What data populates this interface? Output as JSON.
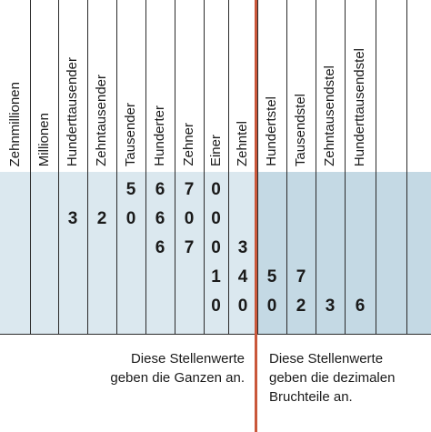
{
  "columns": [
    {
      "label": "Zehnmillionen"
    },
    {
      "label": "Millionen"
    },
    {
      "label": "Hunderttausender"
    },
    {
      "label": "Zehntausender"
    },
    {
      "label": "Tausender"
    },
    {
      "label": "Hunderter"
    },
    {
      "label": "Zehner"
    },
    {
      "label": "Einer"
    },
    {
      "label": "Zehntel"
    },
    {
      "label": "Hundertstel"
    },
    {
      "label": "Tausendstel"
    },
    {
      "label": "Zehntausendstel"
    },
    {
      "label": "Hunderttausendstel"
    }
  ],
  "rows": [
    [
      "",
      "",
      "",
      "",
      "5",
      "6",
      "7",
      "0",
      "",
      "",
      "",
      "",
      ""
    ],
    [
      "",
      "",
      "3",
      "2",
      "0",
      "6",
      "0",
      "0",
      "",
      "",
      "",
      "",
      ""
    ],
    [
      "",
      "",
      "",
      "",
      "",
      "6",
      "7",
      "0",
      "3",
      "",
      "",
      "",
      ""
    ],
    [
      "",
      "",
      "",
      "",
      "",
      "",
      "",
      "1",
      "4",
      "5",
      "7",
      "",
      ""
    ],
    [
      "",
      "",
      "",
      "",
      "",
      "",
      "",
      "0",
      "0",
      "0",
      "2",
      "3",
      "6"
    ]
  ],
  "notes": {
    "whole": [
      "Diese Stellenwerte",
      "geben die Ganzen an."
    ],
    "decimal": [
      "Diese Stellenwerte",
      "geben die dezimalen",
      "Bruchteile an."
    ]
  },
  "colors": {
    "whole_region": "#dbe8ef",
    "decimal_region": "#c4d9e4",
    "divider": "#c9573a",
    "lines": "#2b2b2b"
  }
}
